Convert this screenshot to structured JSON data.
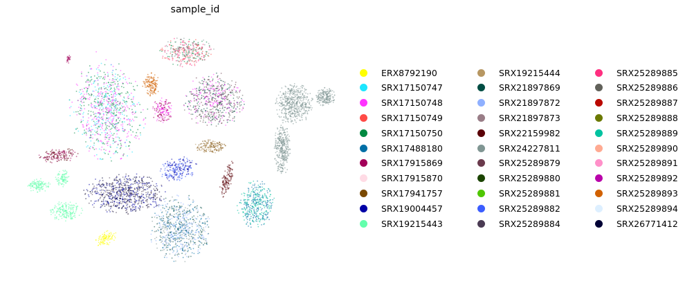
{
  "chart_data": {
    "type": "scatter",
    "title": "sample_id",
    "xlabel": "",
    "ylabel": "",
    "axes_visible": false,
    "grid": false,
    "legend_location": "right",
    "legend_columns": 3,
    "series": [
      {
        "name": "ERX8792190",
        "color": "#ffff00"
      },
      {
        "name": "SRX17150747",
        "color": "#1ce6ff"
      },
      {
        "name": "SRX17150748",
        "color": "#ff34ff"
      },
      {
        "name": "SRX17150749",
        "color": "#ff4a46"
      },
      {
        "name": "SRX17150750",
        "color": "#008941"
      },
      {
        "name": "SRX17488180",
        "color": "#006fa6"
      },
      {
        "name": "SRX17915869",
        "color": "#a30059"
      },
      {
        "name": "SRX17915870",
        "color": "#ffdbe5"
      },
      {
        "name": "SRX17941757",
        "color": "#7a4900"
      },
      {
        "name": "SRX19004457",
        "color": "#0000a6"
      },
      {
        "name": "SRX19215443",
        "color": "#63ffac"
      },
      {
        "name": "SRX19215444",
        "color": "#b79762"
      },
      {
        "name": "SRX21897869",
        "color": "#004d43"
      },
      {
        "name": "SRX21897872",
        "color": "#8fb0ff"
      },
      {
        "name": "SRX21897873",
        "color": "#997d87"
      },
      {
        "name": "SRX22159982",
        "color": "#5a0007"
      },
      {
        "name": "SRX24227811",
        "color": "#809693"
      },
      {
        "name": "SRX25289879",
        "color": "#6a3a4c"
      },
      {
        "name": "SRX25289880",
        "color": "#1b4400"
      },
      {
        "name": "SRX25289881",
        "color": "#4fc601"
      },
      {
        "name": "SRX25289882",
        "color": "#3b5dff"
      },
      {
        "name": "SRX25289884",
        "color": "#4a3b53"
      },
      {
        "name": "SRX25289885",
        "color": "#ff2f80"
      },
      {
        "name": "SRX25289886",
        "color": "#61615a"
      },
      {
        "name": "SRX25289887",
        "color": "#ba0900"
      },
      {
        "name": "SRX25289888",
        "color": "#6b7900"
      },
      {
        "name": "SRX25289889",
        "color": "#00c2a0"
      },
      {
        "name": "SRX25289890",
        "color": "#ffaa92"
      },
      {
        "name": "SRX25289891",
        "color": "#ff90c9"
      },
      {
        "name": "SRX25289892",
        "color": "#b903aa"
      },
      {
        "name": "SRX25289893",
        "color": "#d16100"
      },
      {
        "name": "SRX25289894",
        "color": "#ddefff"
      },
      {
        "name": "SRX26771412",
        "color": "#000035"
      }
    ]
  }
}
